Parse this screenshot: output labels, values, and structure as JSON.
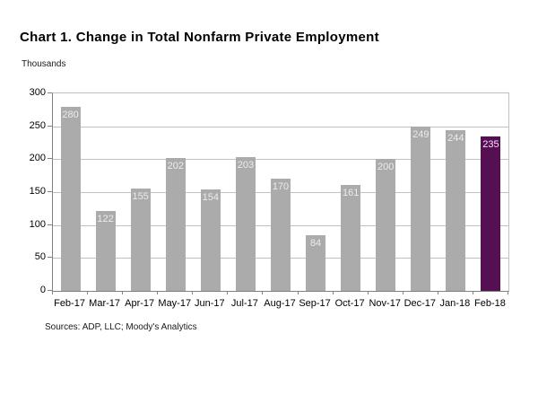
{
  "title": "Chart 1. Change in Total Nonfarm Private Employment",
  "units_label": "Thousands",
  "source_note": "Sources: ADP, LLC; Moody's Analytics",
  "colors": {
    "bar": "#ababab",
    "highlight_bar": "#541052",
    "gridline": "#c0c0c0",
    "axis": "#808080",
    "value_label": "#ececec"
  },
  "chart_data": {
    "type": "bar",
    "title": "Chart 1. Change in Total Nonfarm Private Employment",
    "xlabel": "",
    "ylabel": "Thousands",
    "categories": [
      "Feb-17",
      "Mar-17",
      "Apr-17",
      "May-17",
      "Jun-17",
      "Jul-17",
      "Aug-17",
      "Sep-17",
      "Oct-17",
      "Nov-17",
      "Dec-17",
      "Jan-18",
      "Feb-18"
    ],
    "values": [
      280,
      122,
      155,
      202,
      154,
      203,
      170,
      84,
      161,
      200,
      249,
      244,
      235
    ],
    "highlight_index": 12,
    "ylim": [
      0,
      300
    ],
    "yticks": [
      0,
      50,
      100,
      150,
      200,
      250,
      300
    ],
    "grid": true,
    "legend": "none",
    "data_labels": "inside-top"
  }
}
